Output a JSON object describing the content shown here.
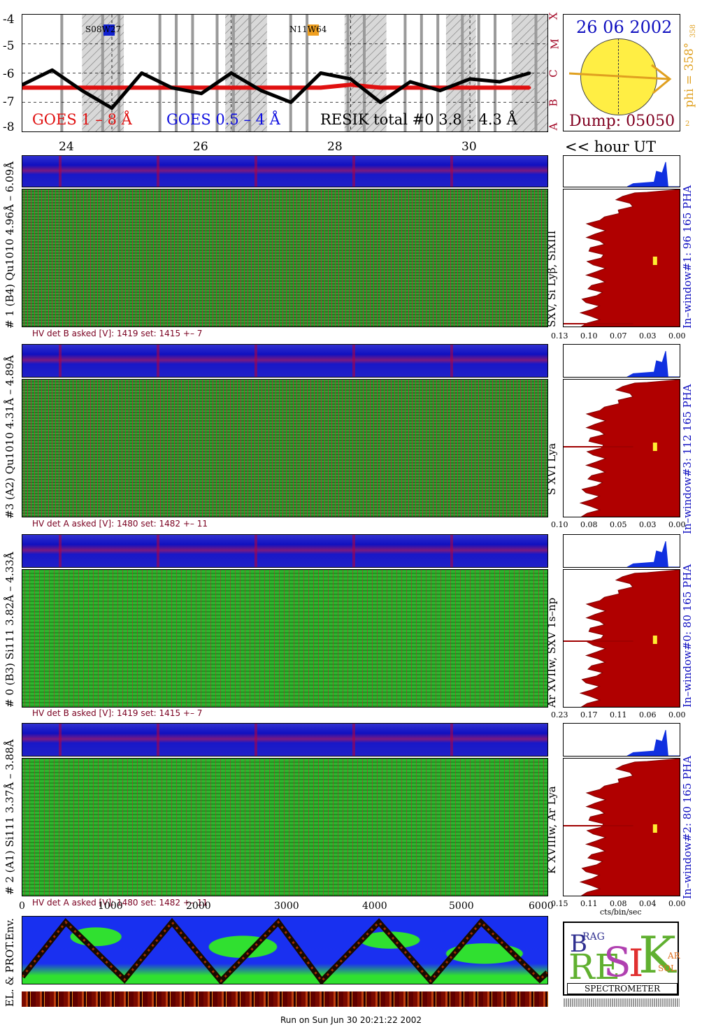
{
  "goes": {
    "y_ticks": [
      "-4",
      "-5",
      "-6",
      "-7",
      "-8"
    ],
    "class_labels": [
      "X",
      "M",
      "C",
      "B",
      "A"
    ],
    "legend_goes_long": "GOES 1 – 8 Å",
    "legend_goes_short": "GOES 0.5 – 4 Å",
    "legend_resik": "RESIK total #0   3.8 – 4.3 Å",
    "flare_label_1": "S08W27",
    "flare_label_2": "N11W64",
    "colors": {
      "long": "#e01010",
      "short": "#1010e0",
      "resik": "#000000",
      "flare1": "#1020d0",
      "flare2": "#f0a020"
    }
  },
  "sun": {
    "date": "26 06 2002",
    "dump": "Dump: 05050",
    "phi": "phi = 358°",
    "phi_small": "358",
    "corner_2": "2",
    "colors": {
      "disk": "#ffee44",
      "arrow": "#e0a020",
      "date": "#1010c0",
      "dump": "#800020"
    }
  },
  "hour_axis": {
    "ticks": [
      "24",
      "26",
      "28",
      "30"
    ],
    "label": "<< hour UT"
  },
  "panels": [
    {
      "id": "p1",
      "left_label": "# 1 (B4) Qu1010  4.96Å – 6.09Å",
      "line_label": "SXV, Si Lyβ, SiXIII",
      "right_label": "In–window#1:   96 165  PHA",
      "hv": "HV det B asked [V]:  1419  set:  1415  +–    7",
      "spec_ticks": [
        "0.13",
        "0.10",
        "0.07",
        "0.03",
        "0.00"
      ]
    },
    {
      "id": "p3",
      "left_label": "#3 (A2) Qu1010  4.31Å – 4.89Å",
      "line_label": "S XVI Lya",
      "right_label": "In–window#3:   112 165  PHA",
      "hv": "HV det A asked [V]:  1480  set:  1482  +–    11",
      "spec_ticks": [
        "0.10",
        "0.08",
        "0.05",
        "0.03",
        "0.00"
      ]
    },
    {
      "id": "p0",
      "left_label": "# 0 (B3) Si111  3.82Å – 4.33Å",
      "line_label": "Ar XVIIw,  SXV 1s–np",
      "right_label": "In–window#0:   80 165  PHA",
      "hv": "HV det B asked [V]:  1419  set:  1415  +–    7",
      "spec_ticks": [
        "0.23",
        "0.17",
        "0.11",
        "0.06",
        "0.00"
      ]
    },
    {
      "id": "p2",
      "left_label": "# 2 (A1) Si111  3.37Å – 3.88Å",
      "line_label": "K XVIIIw,  Ar Lya",
      "right_label": "In–window#2:   80 165  PHA",
      "hv": "HV det A asked [V]:  1480  set:  1482  +–    11",
      "spec_ticks": [
        "0.15",
        "0.11",
        "0.08",
        "0.04",
        "0.00"
      ]
    }
  ],
  "bottom_axis": {
    "ticks": [
      "0",
      "1000",
      "2000",
      "3000",
      "4000",
      "5000",
      "6000"
    ],
    "unit": "cts/bin/sec"
  },
  "env": {
    "label": "EL. & PROT.Env."
  },
  "logo": {
    "b": "B",
    "rag": "RAG",
    "re": "RE",
    "s": "S",
    "i": "I",
    "k": "K",
    "sol": "SOL",
    "ar": "AR",
    "spectrometer": "SPECTROMETER"
  },
  "footer": "Run on Sun Jun 30 20:21:22 2002",
  "chart_data": {
    "type": "line",
    "title": "",
    "xlabel": "<< hour UT",
    "ylabel": "",
    "x": [
      22.5,
      23,
      23.5,
      24,
      24.5,
      25,
      25.5,
      26,
      26.5,
      27,
      27.5,
      28,
      28.5,
      29,
      29.5,
      30,
      30.5,
      31
    ],
    "ylim": [
      -8,
      -4
    ],
    "series": [
      {
        "name": "GOES 1 – 8 Å",
        "values": [
          -6.5,
          -6.5,
          -6.5,
          -6.5,
          -6.5,
          -6.5,
          -6.5,
          -6.5,
          -6.5,
          -6.5,
          -6.5,
          -6.4,
          -6.5,
          -6.5,
          -6.5,
          -6.5,
          -6.5,
          -6.5
        ]
      },
      {
        "name": "RESIK total #0   3.8 – 4.3 Å",
        "values": [
          -6.4,
          -5.9,
          -6.6,
          -7.2,
          -6.0,
          -6.5,
          -6.7,
          -6.0,
          -6.6,
          -7.0,
          -6.0,
          -6.2,
          -7.0,
          -6.3,
          -6.6,
          -6.2,
          -6.3,
          -6.0
        ]
      }
    ]
  }
}
